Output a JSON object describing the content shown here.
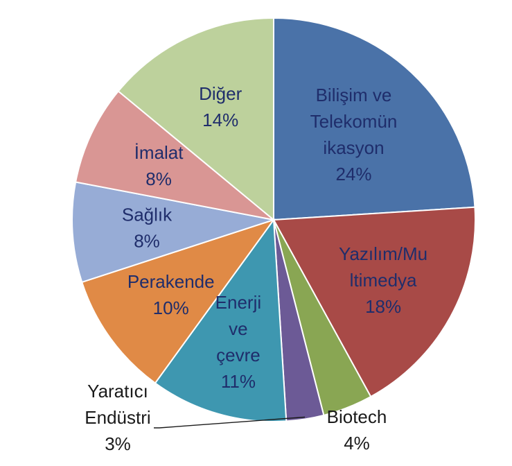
{
  "chart_data": {
    "type": "pie",
    "slices": [
      {
        "name": "Bilişim ve Telekomün ikasyon",
        "lines": [
          "Bilişim ve",
          "Telekomün",
          "ikasyon"
        ],
        "value": 24,
        "label": "24%",
        "color": "#4a72a8",
        "label_pos": "inside"
      },
      {
        "name": "Yazılım/Multimedya",
        "lines": [
          "Yazılım/Mu",
          "ltimedya"
        ],
        "value": 18,
        "label": "18%",
        "color": "#a84a47",
        "label_pos": "inside"
      },
      {
        "name": "Biotech",
        "lines": [
          "Biotech"
        ],
        "value": 4,
        "label": "4%",
        "color": "#89a653",
        "label_pos": "outside"
      },
      {
        "name": "Yaratıcı Endüstri",
        "lines": [
          "Yaratıcı",
          "Endüstri"
        ],
        "value": 3,
        "label": "3%",
        "color": "#6c5a96",
        "label_pos": "outside-leader"
      },
      {
        "name": "Enerji ve çevre",
        "lines": [
          "Enerji",
          "ve",
          "çevre"
        ],
        "value": 11,
        "label": "11%",
        "color": "#3e97b0",
        "label_pos": "inside"
      },
      {
        "name": "Perakende",
        "lines": [
          "Perakende"
        ],
        "value": 10,
        "label": "10%",
        "color": "#e08a46",
        "label_pos": "inside"
      },
      {
        "name": "Sağlık",
        "lines": [
          "Sağlık"
        ],
        "value": 8,
        "label": "8%",
        "color": "#97acd6",
        "label_pos": "inside"
      },
      {
        "name": "İmalat",
        "lines": [
          "İmalat"
        ],
        "value": 8,
        "label": "8%",
        "color": "#d99694",
        "label_pos": "inside"
      },
      {
        "name": "Diğer",
        "lines": [
          "Diğer"
        ],
        "value": 14,
        "label": "14%",
        "color": "#bdd19c",
        "label_pos": "inside"
      }
    ],
    "start": "12 o'clock",
    "direction": "clockwise",
    "legend": "none"
  }
}
